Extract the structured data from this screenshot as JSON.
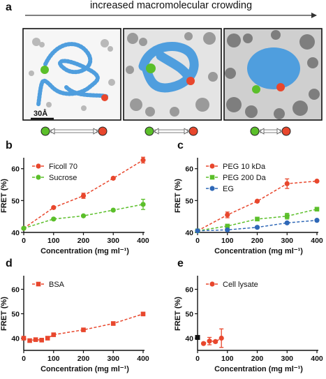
{
  "header": {
    "title": "increased macromolecular crowding",
    "scale_label": "30Å"
  },
  "panels": [
    "a",
    "b",
    "c",
    "d",
    "e"
  ],
  "colors": {
    "orange": "#e8472d",
    "green": "#5bbf2a",
    "blue": "#2f68b7",
    "protein": "#4f9ede",
    "crowder": "#8a8a8a"
  },
  "chart_data": [
    {
      "panel": "b",
      "type": "line",
      "xlabel": "Concentration (mg ml⁻¹)",
      "ylabel": "FRET (%)",
      "xlim": [
        0,
        400
      ],
      "ylim": [
        40,
        63
      ],
      "xticks": [
        0,
        100,
        200,
        300,
        400
      ],
      "yticks": [
        40,
        50,
        60
      ],
      "legend": "top-left",
      "series": [
        {
          "name": "Ficoll 70",
          "color": "#e8472d",
          "marker": "circle",
          "x": [
            0,
            100,
            200,
            300,
            400
          ],
          "y": [
            41.3,
            47.8,
            51.5,
            57.0,
            62.7
          ],
          "err": [
            0.3,
            0.3,
            0.8,
            0.3,
            0.9
          ]
        },
        {
          "name": "Sucrose",
          "color": "#5bbf2a",
          "marker": "circle",
          "x": [
            0,
            100,
            200,
            300,
            400
          ],
          "y": [
            41.3,
            44.2,
            45.2,
            47.0,
            48.8
          ],
          "err": [
            0.3,
            0.3,
            0.3,
            0.3,
            1.6
          ]
        }
      ]
    },
    {
      "panel": "c",
      "type": "line",
      "xlabel": "Concentration (mg ml⁻¹)",
      "ylabel": "FRET (%)",
      "xlim": [
        0,
        400
      ],
      "ylim": [
        40,
        63
      ],
      "xticks": [
        0,
        100,
        200,
        300,
        400
      ],
      "yticks": [
        40,
        50,
        60
      ],
      "legend": "top-left",
      "series": [
        {
          "name": "PEG 10 kDa",
          "color": "#e8472d",
          "marker": "circle",
          "x": [
            0,
            100,
            200,
            300,
            400
          ],
          "y": [
            40.5,
            45.5,
            49.8,
            55.3,
            56.1
          ],
          "err": [
            0.3,
            0.9,
            0.3,
            1.5,
            0.3
          ]
        },
        {
          "name": "PEG 200 Da",
          "color": "#5bbf2a",
          "marker": "square",
          "x": [
            0,
            100,
            200,
            300,
            400
          ],
          "y": [
            40.5,
            42.0,
            44.2,
            45.1,
            47.3
          ],
          "err": [
            0.3,
            0.3,
            0.3,
            0.9,
            0.3
          ]
        },
        {
          "name": "EG",
          "color": "#2f68b7",
          "marker": "circle",
          "x": [
            0,
            100,
            200,
            300,
            400
          ],
          "y": [
            40.5,
            40.8,
            41.6,
            43.0,
            43.8
          ],
          "err": [
            0.3,
            0.3,
            0.3,
            0.3,
            0.3
          ]
        }
      ]
    },
    {
      "panel": "d",
      "type": "line",
      "xlabel": "Concentration (mg ml⁻¹)",
      "ylabel": "FRET (%)",
      "xlim": [
        0,
        400
      ],
      "ylim": [
        35,
        65
      ],
      "xticks": [
        0,
        100,
        200,
        300,
        400
      ],
      "yticks": [
        40,
        50,
        60
      ],
      "legend": "top-left",
      "series": [
        {
          "name": "BSA",
          "color": "#e8472d",
          "marker": "square",
          "x": [
            0,
            20,
            40,
            60,
            80,
            100,
            200,
            300,
            400
          ],
          "y": [
            40.0,
            39.0,
            39.4,
            39.2,
            40.0,
            41.4,
            43.4,
            46.0,
            49.9
          ],
          "err": [
            0.3,
            0.3,
            0.3,
            0.3,
            0.3,
            0.3,
            0.3,
            0.3,
            0.3
          ]
        }
      ]
    },
    {
      "panel": "e",
      "type": "line",
      "xlabel": "Concentration (mg ml⁻¹)",
      "ylabel": "FRET (%)",
      "xlim": [
        0,
        400
      ],
      "ylim": [
        35,
        65
      ],
      "xticks": [
        0,
        100,
        200,
        300,
        400
      ],
      "yticks": [
        40,
        50,
        60
      ],
      "legend": "top-left",
      "reference_point": {
        "x": 0,
        "y": 40.3
      },
      "series": [
        {
          "name": "Cell lysate",
          "color": "#e8472d",
          "marker": "circle",
          "x": [
            20,
            40,
            60,
            80
          ],
          "y": [
            37.8,
            38.8,
            38.6,
            40.0
          ],
          "err": [
            0.4,
            1.5,
            0.5,
            3.8
          ]
        }
      ]
    }
  ]
}
